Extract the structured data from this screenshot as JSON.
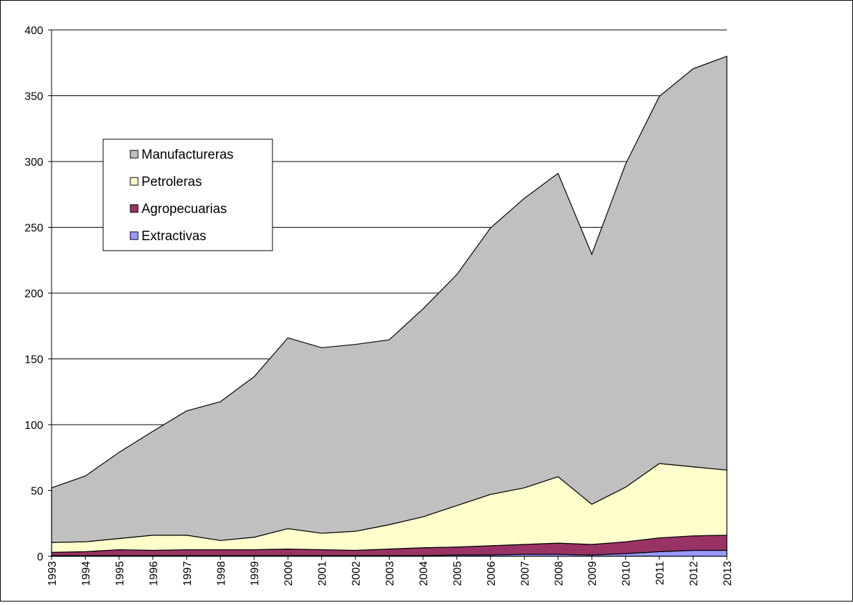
{
  "chart_data": {
    "type": "stacked_area",
    "categories": [
      "1993",
      "1994",
      "1995",
      "1996",
      "1997",
      "1998",
      "1999",
      "2000",
      "2001",
      "2002",
      "2003",
      "2004",
      "2005",
      "2006",
      "2007",
      "2008",
      "2009",
      "2010",
      "2011",
      "2012",
      "2013"
    ],
    "series": [
      {
        "name": "Extractivas",
        "color": "#9999ff",
        "values": [
          0.5,
          0.5,
          0.5,
          0.5,
          0.5,
          0.5,
          0.5,
          0.5,
          0.5,
          0.5,
          0.5,
          0.5,
          1,
          1,
          1.5,
          1.5,
          1,
          2,
          3.5,
          4.5,
          4.5
        ]
      },
      {
        "name": "Agropecuarias",
        "color": "#993366",
        "values": [
          2.5,
          3,
          4.5,
          4,
          4.5,
          4.5,
          4.5,
          5,
          4.5,
          4,
          5,
          6,
          6,
          7,
          7.5,
          8.5,
          8,
          9,
          10.5,
          11,
          11.5
        ]
      },
      {
        "name": "Petroleras",
        "color": "#ffffcc",
        "values": [
          7.5,
          7.5,
          8.5,
          11.5,
          11,
          7,
          9.5,
          15.5,
          12.5,
          14.5,
          18.5,
          23.5,
          31.5,
          39,
          43,
          50.5,
          30.5,
          41.5,
          56.5,
          52.5,
          49.5
        ]
      },
      {
        "name": "Manufactureras",
        "color": "#c0c0c0",
        "values": [
          41.5,
          50,
          65.5,
          79,
          94.5,
          105.5,
          122,
          145,
          141,
          142,
          140.5,
          158,
          175.5,
          202.5,
          220,
          230.5,
          190,
          245.5,
          279,
          302.5,
          314.5
        ]
      }
    ],
    "ylim": [
      0,
      400
    ],
    "yticks": [
      0,
      50,
      100,
      150,
      200,
      250,
      300,
      350,
      400
    ],
    "grid": true,
    "legend": "upper left"
  }
}
